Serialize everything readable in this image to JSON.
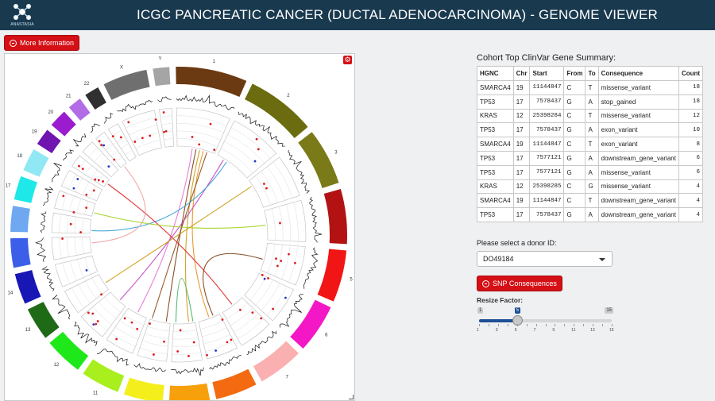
{
  "header": {
    "logo_text": "ANASTASIA",
    "title": "ICGC PANCREATIC CANCER (DUCTAL ADENOCARCINOMA) - GENOME VIEWER"
  },
  "buttons": {
    "more_info": "More Information",
    "snp": "SNP Consequences"
  },
  "circos": {
    "chromosome_labels": [
      "1",
      "2",
      "3",
      "4",
      "5",
      "6",
      "7",
      "8",
      "9",
      "10",
      "11",
      "12",
      "13",
      "14",
      "15",
      "16",
      "17",
      "18",
      "19",
      "20",
      "21",
      "22",
      "X",
      "Y"
    ],
    "chromosome_colors": [
      "#6b3a12",
      "#6b6b10",
      "#7a7a18",
      "#b31213",
      "#f21515",
      "#f417c6",
      "#fab0b0",
      "#f46a10",
      "#f6a00c",
      "#f3ee1c",
      "#a8ef1d",
      "#1ee81a",
      "#1f6a17",
      "#1816b5",
      "#3b5fe8",
      "#6fa8f0",
      "#1ee8e8",
      "#8fe8f3",
      "#7015b0",
      "#9b1ccf",
      "#b26ce6",
      "#303030",
      "#6f6f6f",
      "#a5a5a5"
    ],
    "link_colors": [
      "#7a3c12",
      "#c99a10",
      "#e88d1b",
      "#8a4a1a",
      "#e86fd2",
      "#c040c0",
      "#3aa0d8",
      "#e02020",
      "#f0a0a0",
      "#a0d020",
      "#40b060"
    ]
  },
  "summary": {
    "title": "Cohort Top ClinVar Gene Summary:",
    "columns": [
      "HGNC",
      "Chr",
      "Start",
      "From",
      "To",
      "Consequence",
      "Count"
    ],
    "rows": [
      [
        "SMARCA4",
        "19",
        "11144847",
        "C",
        "T",
        "missense_variant",
        "18"
      ],
      [
        "TP53",
        "17",
        "7578437",
        "G",
        "A",
        "stop_gained",
        "18"
      ],
      [
        "KRAS",
        "12",
        "25398284",
        "C",
        "T",
        "missense_variant",
        "12"
      ],
      [
        "TP53",
        "17",
        "7578437",
        "G",
        "A",
        "exon_variant",
        "10"
      ],
      [
        "SMARCA4",
        "19",
        "11144847",
        "C",
        "T",
        "exon_variant",
        "8"
      ],
      [
        "TP53",
        "17",
        "7577121",
        "G",
        "A",
        "downstream_gene_variant",
        "6"
      ],
      [
        "TP53",
        "17",
        "7577121",
        "G",
        "A",
        "missense_variant",
        "6"
      ],
      [
        "KRAS",
        "12",
        "25398285",
        "C",
        "G",
        "missense_variant",
        "4"
      ],
      [
        "SMARCA4",
        "19",
        "11144847",
        "C",
        "T",
        "downstream_gene_variant",
        "4"
      ],
      [
        "TP53",
        "17",
        "7578437",
        "G",
        "A",
        "downstream_gene_variant",
        "4"
      ]
    ]
  },
  "donor": {
    "label": "Please select a donor ID:",
    "selected": "DO49184"
  },
  "resize": {
    "label": "Resize Factor:",
    "min": 1,
    "max": 15,
    "value": 5,
    "min_label": "1",
    "max_label": "15",
    "value_label": "5",
    "ticks": [
      "1",
      "3",
      "5",
      "7",
      "9",
      "11",
      "13",
      "15"
    ]
  },
  "colors": {
    "header_bg": "#19394f",
    "accent_red": "#d40f15",
    "slider_fill": "#1e4f96"
  }
}
